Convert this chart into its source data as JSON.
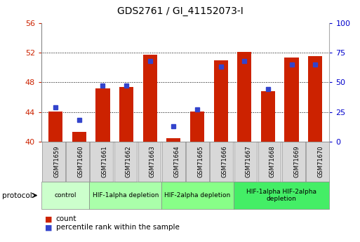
{
  "title": "GDS2761 / GI_41152073-I",
  "samples": [
    "GSM71659",
    "GSM71660",
    "GSM71661",
    "GSM71662",
    "GSM71663",
    "GSM71664",
    "GSM71665",
    "GSM71666",
    "GSM71667",
    "GSM71668",
    "GSM71669",
    "GSM71670"
  ],
  "bar_values": [
    44.1,
    41.3,
    47.2,
    47.4,
    51.7,
    40.5,
    44.1,
    51.0,
    52.1,
    46.8,
    51.3,
    51.5
  ],
  "percentile_values": [
    29,
    18,
    47,
    47,
    68,
    13,
    27,
    63,
    68,
    44,
    65,
    65
  ],
  "bar_bottom": 40,
  "ylim": [
    40,
    56
  ],
  "ylim_right": [
    0,
    100
  ],
  "yticks_left": [
    40,
    44,
    48,
    52,
    56
  ],
  "yticks_right": [
    0,
    25,
    50,
    75,
    100
  ],
  "bar_color": "#cc2200",
  "blue_color": "#3344cc",
  "group_labels": [
    "control",
    "HIF-1alpha depletion",
    "HIF-2alpha depletion",
    "HIF-1alpha HIF-2alpha\ndepletion"
  ],
  "group_ranges": [
    [
      0,
      1
    ],
    [
      2,
      4
    ],
    [
      5,
      7
    ],
    [
      8,
      11
    ]
  ],
  "group_colors": [
    "#ccffcc",
    "#aaffaa",
    "#88ff88",
    "#44ee66"
  ],
  "protocol_label": "protocol",
  "legend_count": "count",
  "legend_pct": "percentile rank within the sample",
  "left_tick_color": "#cc2200",
  "right_tick_color": "#0000cc",
  "bg_color": "#ffffff",
  "tick_bg_color": "#d8d8d8"
}
